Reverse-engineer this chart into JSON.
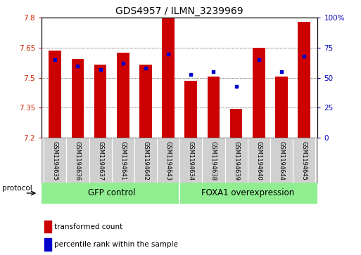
{
  "title": "GDS4957 / ILMN_3239969",
  "samples": [
    "GSM1194635",
    "GSM1194636",
    "GSM1194637",
    "GSM1194641",
    "GSM1194642",
    "GSM1194643",
    "GSM1194634",
    "GSM1194638",
    "GSM1194639",
    "GSM1194640",
    "GSM1194644",
    "GSM1194645"
  ],
  "red_values": [
    7.635,
    7.595,
    7.565,
    7.625,
    7.565,
    7.8,
    7.485,
    7.505,
    7.345,
    7.65,
    7.505,
    7.78
  ],
  "blue_percentile": [
    65,
    60,
    57,
    62,
    58,
    70,
    53,
    55,
    43,
    65,
    55,
    68
  ],
  "ymin": 7.2,
  "ymax": 7.8,
  "y_ticks_left": [
    7.2,
    7.35,
    7.5,
    7.65,
    7.8
  ],
  "y_ticks_right": [
    0,
    25,
    50,
    75,
    100
  ],
  "bar_color": "#cc0000",
  "dot_color": "#0000cc",
  "grid_color": "#000000",
  "tick_color_left": "#cc2200",
  "tick_color_right": "#0000bb",
  "group1_label": "GFP control",
  "group2_label": "FOXA1 overexpression",
  "group_color": "#90ee90",
  "group_divider": 5.5,
  "protocol_label": "protocol",
  "legend_red_label": "transformed count",
  "legend_blue_label": "percentile rank within the sample",
  "xtick_bg": "#d0d0d0",
  "bar_width": 0.55
}
